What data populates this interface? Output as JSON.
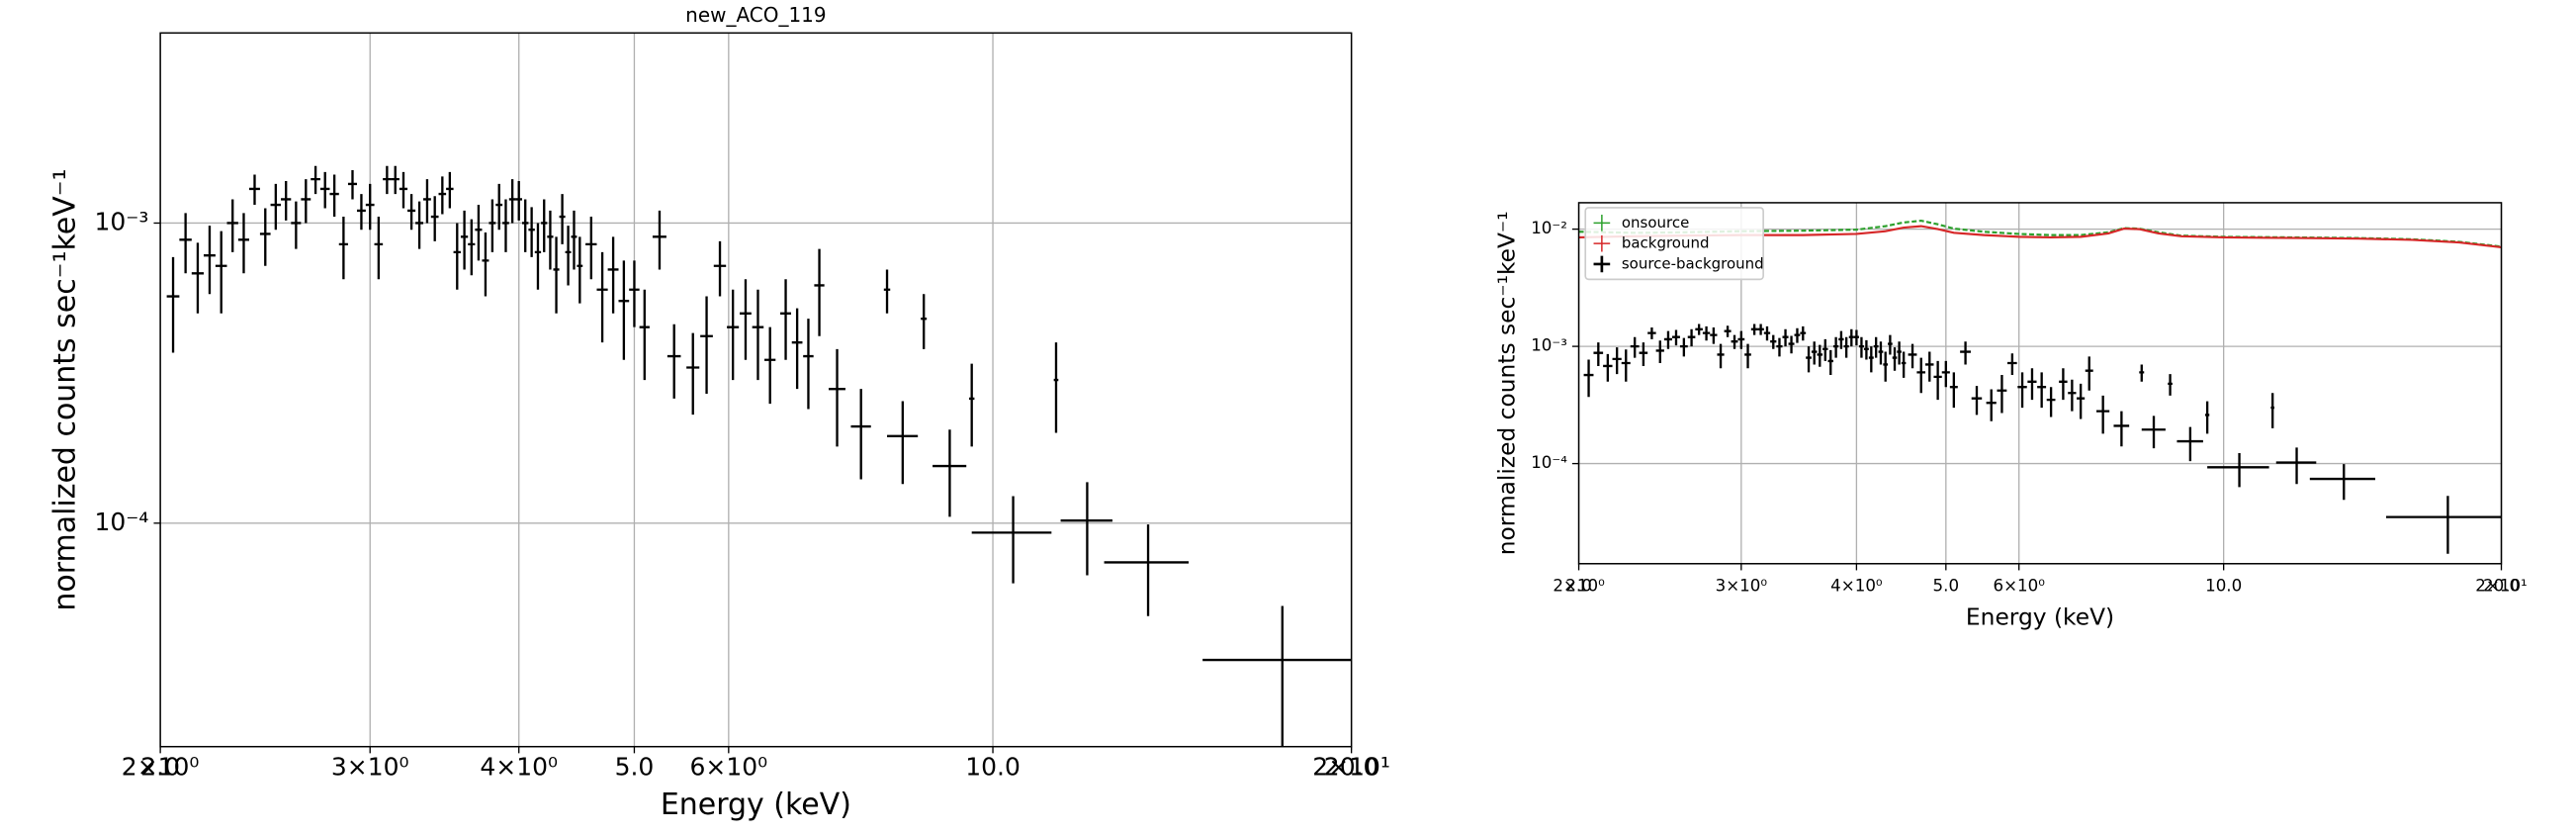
{
  "chart_data": [
    {
      "type": "errorbar",
      "title": "new_ACO_119",
      "xlabel": "Energy (keV)",
      "ylabel": "normalized counts sec⁻¹keV⁻¹",
      "xscale": "log",
      "yscale": "log",
      "grid": true,
      "xlim": [
        2,
        20
      ],
      "ylim": [
        1.8e-05,
        0.0043
      ],
      "xticks": [
        {
          "value": 2,
          "label": "2.0"
        },
        {
          "value": 3,
          "label": "3×10⁰"
        },
        {
          "value": 4,
          "label": "4×10⁰"
        },
        {
          "value": 5,
          "label": "5.0"
        },
        {
          "value": 6,
          "label": "6×10⁰"
        },
        {
          "value": 10,
          "label": "10.0"
        },
        {
          "value": 20,
          "label": "20.0"
        }
      ],
      "xticks_minor": [
        {
          "value": 2,
          "label": "2×10⁰"
        },
        {
          "value": 20,
          "label": "2×10¹"
        }
      ],
      "yticks": [
        {
          "value": 0.001,
          "label": "10⁻³"
        },
        {
          "value": 0.0001,
          "label": "10⁻⁴"
        }
      ],
      "series": [
        {
          "color": "#000000",
          "x": [
            2.05,
            2.1,
            2.15,
            2.2,
            2.25,
            2.3,
            2.35,
            2.4,
            2.45,
            2.5,
            2.55,
            2.6,
            2.65,
            2.7,
            2.75,
            2.8,
            2.85,
            2.9,
            2.95,
            3.0,
            3.05,
            3.1,
            3.15,
            3.2,
            3.25,
            3.3,
            3.35,
            3.4,
            3.45,
            3.5,
            3.55,
            3.6,
            3.65,
            3.7,
            3.75,
            3.8,
            3.85,
            3.9,
            3.95,
            4.0,
            4.05,
            4.1,
            4.15,
            4.2,
            4.25,
            4.3,
            4.35,
            4.4,
            4.45,
            4.5,
            4.6,
            4.7,
            4.8,
            4.9,
            5.0,
            5.1,
            5.25,
            5.4,
            5.6,
            5.75,
            5.9,
            6.05,
            6.2,
            6.35,
            6.5,
            6.7,
            6.85,
            7.0,
            7.15,
            7.4,
            7.75,
            8.15,
            8.4,
            8.75,
            9.2,
            9.6,
            10.4,
            11.3,
            12.0,
            13.5,
            17.5
          ],
          "xerr": [
            0.025,
            0.025,
            0.025,
            0.025,
            0.025,
            0.025,
            0.025,
            0.025,
            0.025,
            0.025,
            0.025,
            0.025,
            0.025,
            0.025,
            0.025,
            0.025,
            0.025,
            0.025,
            0.025,
            0.025,
            0.025,
            0.025,
            0.025,
            0.025,
            0.025,
            0.025,
            0.025,
            0.025,
            0.025,
            0.025,
            0.025,
            0.025,
            0.025,
            0.025,
            0.025,
            0.025,
            0.025,
            0.025,
            0.025,
            0.025,
            0.025,
            0.025,
            0.025,
            0.025,
            0.025,
            0.025,
            0.025,
            0.025,
            0.025,
            0.025,
            0.05,
            0.05,
            0.05,
            0.05,
            0.05,
            0.05,
            0.07,
            0.07,
            0.07,
            0.07,
            0.07,
            0.07,
            0.07,
            0.07,
            0.07,
            0.07,
            0.07,
            0.07,
            0.07,
            0.12,
            0.15,
            0.05,
            0.25,
            0.05,
            0.3,
            0.05,
            0.8,
            0.05,
            0.6,
            1.1,
            2.5
          ],
          "values": [
            0.00057,
            0.00088,
            0.00068,
            0.00078,
            0.00072,
            0.001,
            0.00088,
            0.0013,
            0.00092,
            0.00115,
            0.0012,
            0.001,
            0.0012,
            0.0014,
            0.0013,
            0.00125,
            0.00085,
            0.00135,
            0.0011,
            0.00115,
            0.00085,
            0.0014,
            0.0014,
            0.0013,
            0.0011,
            0.001,
            0.0012,
            0.00105,
            0.00125,
            0.0013,
            0.0008,
            0.0009,
            0.00085,
            0.00095,
            0.00075,
            0.001,
            0.00115,
            0.001,
            0.0012,
            0.0012,
            0.001,
            0.00095,
            0.0008,
            0.001,
            0.0009,
            0.0007,
            0.00105,
            0.0008,
            0.0009,
            0.00072,
            0.00085,
            0.0006,
            0.0007,
            0.00055,
            0.0006,
            0.00045,
            0.0009,
            0.00036,
            0.00033,
            0.00042,
            0.00072,
            0.00045,
            0.0005,
            0.00045,
            0.00035,
            0.0005,
            0.0004,
            0.00036,
            0.00062,
            0.00028,
            0.00021,
            0.0006,
            0.000195,
            0.00048,
            0.000155,
            0.00026,
            9.3e-05,
            0.0003,
            0.000102,
            7.4e-05,
            3.5e-05
          ],
          "yerr": [
            0.0002,
            0.0002,
            0.00018,
            0.0002,
            0.00022,
            0.0002,
            0.0002,
            0.00015,
            0.0002,
            0.0002,
            0.00018,
            0.00018,
            0.0002,
            0.00015,
            0.00018,
            0.0002,
            0.0002,
            0.00015,
            0.00015,
            0.0002,
            0.0002,
            0.00015,
            0.00015,
            0.00018,
            0.00015,
            0.00018,
            0.0002,
            0.00018,
            0.00018,
            0.00018,
            0.0002,
            0.0002,
            0.00018,
            0.0002,
            0.00018,
            0.0002,
            0.0002,
            0.0002,
            0.0002,
            0.00018,
            0.0002,
            0.00018,
            0.0002,
            0.0002,
            0.0002,
            0.0002,
            0.0002,
            0.00018,
            0.0002,
            0.00018,
            0.0002,
            0.0002,
            0.0002,
            0.0002,
            0.00015,
            0.00015,
            0.0002,
            0.0001,
            0.0001,
            0.00015,
            0.00015,
            0.00015,
            0.00015,
            0.00015,
            0.0001,
            0.00015,
            0.00012,
            0.00012,
            0.0002,
            0.0001,
            7e-05,
            0.0001,
            6e-05,
            0.0001,
            5e-05,
            8e-05,
            3e-05,
            0.0001,
            3.5e-05,
            2.5e-05,
            1.8e-05
          ]
        }
      ]
    },
    {
      "type": "errorbar",
      "xlabel": "Energy (keV)",
      "ylabel": "normalized counts sec⁻¹keV⁻¹",
      "xscale": "log",
      "yscale": "log",
      "grid": true,
      "legend": "upper left",
      "xlim": [
        2,
        20
      ],
      "ylim": [
        1.4e-05,
        0.0168
      ],
      "xticks": [
        {
          "value": 2,
          "label": "2.0"
        },
        {
          "value": 3,
          "label": "3×10⁰"
        },
        {
          "value": 4,
          "label": "4×10⁰"
        },
        {
          "value": 5,
          "label": "5.0"
        },
        {
          "value": 6,
          "label": "6×10⁰"
        },
        {
          "value": 10,
          "label": "10.0"
        },
        {
          "value": 20,
          "label": "20.0"
        }
      ],
      "xticks_minor": [
        {
          "value": 2,
          "label": "2×10⁰"
        },
        {
          "value": 20,
          "label": "2×10¹"
        }
      ],
      "yticks": [
        {
          "value": 0.01,
          "label": "10⁻²"
        },
        {
          "value": 0.001,
          "label": "10⁻³"
        },
        {
          "value": 0.0001,
          "label": "10⁻⁴"
        }
      ],
      "series": [
        {
          "name": "onsource",
          "color": "#2ca02c",
          "x": [
            2,
            2.3,
            2.6,
            3,
            3.5,
            4,
            4.3,
            4.5,
            4.7,
            4.9,
            5.1,
            5.5,
            6,
            6.5,
            7,
            7.5,
            7.8,
            8.1,
            8.5,
            9,
            10,
            12,
            14,
            16,
            18,
            20
          ],
          "values": [
            0.0095,
            0.0093,
            0.0094,
            0.0096,
            0.0097,
            0.0099,
            0.0106,
            0.0114,
            0.0118,
            0.011,
            0.0101,
            0.0095,
            0.0091,
            0.0089,
            0.0089,
            0.0094,
            0.0102,
            0.0101,
            0.0094,
            0.0088,
            0.0086,
            0.0085,
            0.0084,
            0.0082,
            0.0078,
            0.0071
          ]
        },
        {
          "name": "background",
          "color": "#d62728",
          "x": [
            2,
            2.3,
            2.6,
            3,
            3.5,
            4,
            4.3,
            4.5,
            4.7,
            4.9,
            5.1,
            5.5,
            6,
            6.5,
            7,
            7.5,
            7.8,
            8.1,
            8.5,
            9,
            10,
            12,
            14,
            16,
            18,
            20
          ],
          "values": [
            0.0085,
            0.0087,
            0.0088,
            0.0089,
            0.0089,
            0.0091,
            0.0096,
            0.0103,
            0.0106,
            0.01,
            0.0093,
            0.0089,
            0.0086,
            0.0085,
            0.0086,
            0.0092,
            0.0101,
            0.01,
            0.0092,
            0.0087,
            0.0085,
            0.0084,
            0.0083,
            0.0081,
            0.0077,
            0.007
          ]
        },
        {
          "name": "source-background",
          "color": "#000000",
          "x": [
            2.05,
            2.1,
            2.15,
            2.2,
            2.25,
            2.3,
            2.35,
            2.4,
            2.45,
            2.5,
            2.55,
            2.6,
            2.65,
            2.7,
            2.75,
            2.8,
            2.85,
            2.9,
            2.95,
            3.0,
            3.05,
            3.1,
            3.15,
            3.2,
            3.25,
            3.3,
            3.35,
            3.4,
            3.45,
            3.5,
            3.55,
            3.6,
            3.65,
            3.7,
            3.75,
            3.8,
            3.85,
            3.9,
            3.95,
            4.0,
            4.05,
            4.1,
            4.15,
            4.2,
            4.25,
            4.3,
            4.35,
            4.4,
            4.45,
            4.5,
            4.6,
            4.7,
            4.8,
            4.9,
            5.0,
            5.1,
            5.25,
            5.4,
            5.6,
            5.75,
            5.9,
            6.05,
            6.2,
            6.35,
            6.5,
            6.7,
            6.85,
            7.0,
            7.15,
            7.4,
            7.75,
            8.15,
            8.4,
            8.75,
            9.2,
            9.6,
            10.4,
            11.3,
            12.0,
            13.5,
            17.5
          ],
          "xerr": [
            0.025,
            0.025,
            0.025,
            0.025,
            0.025,
            0.025,
            0.025,
            0.025,
            0.025,
            0.025,
            0.025,
            0.025,
            0.025,
            0.025,
            0.025,
            0.025,
            0.025,
            0.025,
            0.025,
            0.025,
            0.025,
            0.025,
            0.025,
            0.025,
            0.025,
            0.025,
            0.025,
            0.025,
            0.025,
            0.025,
            0.025,
            0.025,
            0.025,
            0.025,
            0.025,
            0.025,
            0.025,
            0.025,
            0.025,
            0.025,
            0.025,
            0.025,
            0.025,
            0.025,
            0.025,
            0.025,
            0.025,
            0.025,
            0.025,
            0.025,
            0.05,
            0.05,
            0.05,
            0.05,
            0.05,
            0.05,
            0.07,
            0.07,
            0.07,
            0.07,
            0.07,
            0.07,
            0.07,
            0.07,
            0.07,
            0.07,
            0.07,
            0.07,
            0.07,
            0.12,
            0.15,
            0.05,
            0.25,
            0.05,
            0.3,
            0.05,
            0.8,
            0.05,
            0.6,
            1.1,
            2.5
          ],
          "values": [
            0.00057,
            0.00088,
            0.00068,
            0.00078,
            0.00072,
            0.001,
            0.00088,
            0.0013,
            0.00092,
            0.00115,
            0.0012,
            0.001,
            0.0012,
            0.0014,
            0.0013,
            0.00125,
            0.00085,
            0.00135,
            0.0011,
            0.00115,
            0.00085,
            0.0014,
            0.0014,
            0.0013,
            0.0011,
            0.001,
            0.0012,
            0.00105,
            0.00125,
            0.0013,
            0.0008,
            0.0009,
            0.00085,
            0.00095,
            0.00075,
            0.001,
            0.00115,
            0.001,
            0.0012,
            0.0012,
            0.001,
            0.00095,
            0.0008,
            0.001,
            0.0009,
            0.0007,
            0.00105,
            0.0008,
            0.0009,
            0.00072,
            0.00085,
            0.0006,
            0.0007,
            0.00055,
            0.0006,
            0.00045,
            0.0009,
            0.00036,
            0.00033,
            0.00042,
            0.00072,
            0.00045,
            0.0005,
            0.00045,
            0.00035,
            0.0005,
            0.0004,
            0.00036,
            0.00062,
            0.00028,
            0.00021,
            0.0006,
            0.000195,
            0.00048,
            0.000155,
            0.00026,
            9.3e-05,
            0.0003,
            0.000102,
            7.4e-05,
            3.5e-05
          ],
          "yerr": [
            0.0002,
            0.0002,
            0.00018,
            0.0002,
            0.00022,
            0.0002,
            0.0002,
            0.00015,
            0.0002,
            0.0002,
            0.00018,
            0.00018,
            0.0002,
            0.00015,
            0.00018,
            0.0002,
            0.0002,
            0.00015,
            0.00015,
            0.0002,
            0.0002,
            0.00015,
            0.00015,
            0.00018,
            0.00015,
            0.00018,
            0.0002,
            0.00018,
            0.00018,
            0.00018,
            0.0002,
            0.0002,
            0.00018,
            0.0002,
            0.00018,
            0.0002,
            0.0002,
            0.0002,
            0.0002,
            0.00018,
            0.0002,
            0.00018,
            0.0002,
            0.0002,
            0.0002,
            0.0002,
            0.0002,
            0.00018,
            0.0002,
            0.00018,
            0.0002,
            0.0002,
            0.0002,
            0.0002,
            0.00015,
            0.00015,
            0.0002,
            0.0001,
            0.0001,
            0.00015,
            0.00015,
            0.00015,
            0.00015,
            0.00015,
            0.0001,
            0.00015,
            0.00012,
            0.00012,
            0.0002,
            0.0001,
            7e-05,
            0.0001,
            6e-05,
            0.0001,
            5e-05,
            8e-05,
            3e-05,
            0.0001,
            3.5e-05,
            2.5e-05,
            1.8e-05
          ]
        }
      ]
    }
  ]
}
